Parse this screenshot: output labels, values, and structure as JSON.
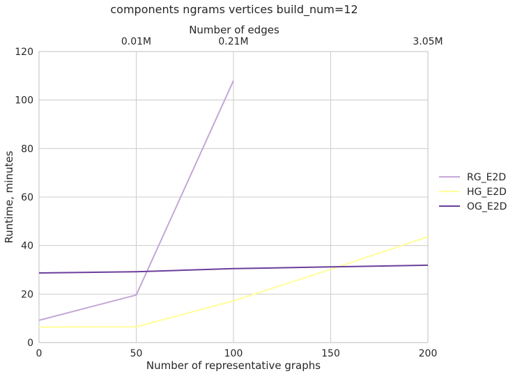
{
  "chart_data": {
    "type": "line",
    "title": "components ngrams vertices build_num=12",
    "xlabel": "Number of representative graphs",
    "ylabel": "Runtime, minutes",
    "x2label": "Number of edges",
    "xlim": [
      0,
      200
    ],
    "ylim": [
      0,
      120
    ],
    "xticks": [
      0,
      50,
      100,
      150,
      200
    ],
    "yticks": [
      0,
      20,
      40,
      60,
      80,
      100,
      120
    ],
    "x2ticks": [
      {
        "x": 50,
        "label": "0.01M"
      },
      {
        "x": 100,
        "label": "0.21M"
      },
      {
        "x": 200,
        "label": "3.05M"
      }
    ],
    "grid": true,
    "legend_position": "right",
    "series": [
      {
        "name": "RG_E2D",
        "color": "#c4a6d6",
        "x": [
          0,
          50,
          100
        ],
        "y": [
          9.2,
          19.6,
          108
        ]
      },
      {
        "name": "HG_E2D",
        "color": "#ffff99",
        "x": [
          0,
          50,
          100,
          150,
          200
        ],
        "y": [
          6.4,
          6.5,
          17.2,
          30.2,
          43.6
        ]
      },
      {
        "name": "OG_E2D",
        "color": "#6a3d9a",
        "x": [
          0,
          50,
          100,
          150,
          200
        ],
        "y": [
          28.7,
          29.2,
          30.5,
          31.2,
          31.9
        ]
      }
    ]
  }
}
